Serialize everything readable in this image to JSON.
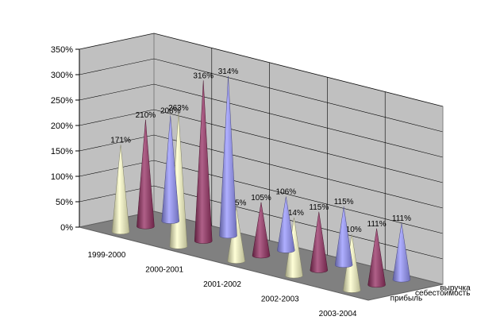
{
  "chart_data": {
    "type": "bar",
    "subtype": "3d-cone",
    "title": "",
    "xlabel": "",
    "ylabel": "",
    "ylim": [
      0,
      3.5
    ],
    "y_ticks": [
      "0%",
      "50%",
      "100%",
      "150%",
      "200%",
      "250%",
      "300%",
      "350%"
    ],
    "grid": true,
    "categories": [
      "1999-2000",
      "2000-2001",
      "2001-2002",
      "2002-2003",
      "2003-2004"
    ],
    "series": [
      {
        "name": "выручка",
        "color": "#9999ff",
        "values": [
          2.08,
          3.14,
          1.06,
          1.15,
          1.11
        ],
        "labels": [
          "208%",
          "314%",
          "106%",
          "115%",
          "111%"
        ]
      },
      {
        "name": "себестоимость",
        "color": "#993366",
        "values": [
          2.1,
          3.16,
          1.05,
          1.15,
          1.11
        ],
        "labels": [
          "210%",
          "316%",
          "105%",
          "115%",
          "111%"
        ]
      },
      {
        "name": "прибыль",
        "color": "#ffffcc",
        "values": [
          1.71,
          2.63,
          1.05,
          1.14,
          1.1
        ],
        "labels": [
          "171%",
          "263%",
          "105%",
          "114%",
          "110%"
        ]
      }
    ]
  }
}
